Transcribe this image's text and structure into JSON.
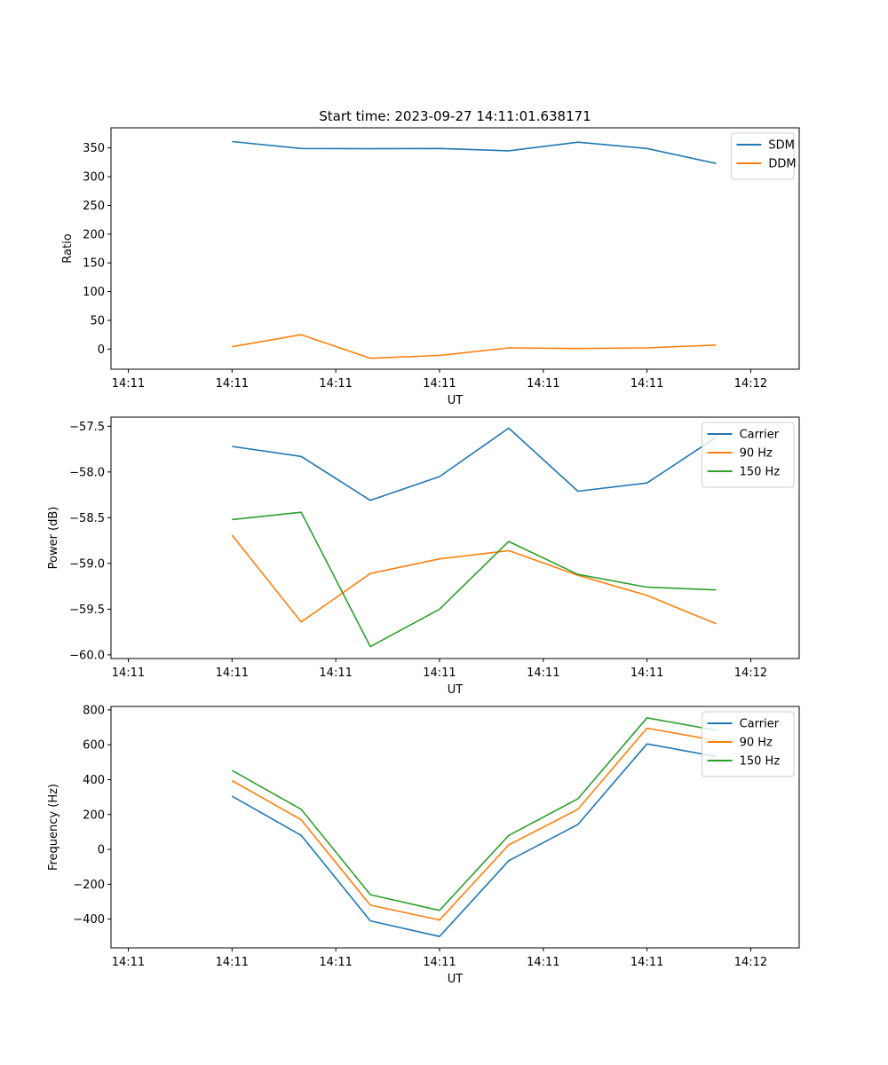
{
  "chart_data": [
    {
      "type": "line",
      "title": "Start time: 2023-09-27 14:11:01.638171",
      "xlabel": "UT",
      "ylabel": "Ratio",
      "x_tick_labels": [
        "14:11",
        "14:11",
        "14:11",
        "14:11",
        "14:11",
        "14:11",
        "14:12"
      ],
      "y_ticks": [
        0,
        50,
        100,
        150,
        200,
        250,
        300,
        350
      ],
      "y_tick_labels": [
        "0",
        "50",
        "100",
        "150",
        "200",
        "250",
        "300",
        "350"
      ],
      "ylim": [
        -35,
        385
      ],
      "x": [
        1,
        2,
        3,
        4,
        5,
        6,
        7,
        8
      ],
      "xlim": [
        -0.75,
        9.2
      ],
      "x_ticks": [
        -0.5,
        1.0,
        2.5,
        4.0,
        5.5,
        7.0,
        8.5
      ],
      "legend_position": "top-right",
      "series": [
        {
          "name": "SDM",
          "color": "#1f77b4",
          "values": [
            361,
            349,
            348.5,
            349,
            345,
            360,
            349,
            323
          ]
        },
        {
          "name": "DDM",
          "color": "#ff7f0e",
          "values": [
            4,
            25,
            -16,
            -11,
            2,
            1,
            2,
            7
          ]
        }
      ]
    },
    {
      "type": "line",
      "title": "",
      "xlabel": "UT",
      "ylabel": "Power (dB)",
      "x_tick_labels": [
        "14:11",
        "14:11",
        "14:11",
        "14:11",
        "14:11",
        "14:11",
        "14:12"
      ],
      "y_ticks": [
        -60.0,
        -59.5,
        -59.0,
        -58.5,
        -58.0,
        -57.5
      ],
      "y_tick_labels": [
        "−60.0",
        "−59.5",
        "−59.0",
        "−58.5",
        "−58.0",
        "−57.5"
      ],
      "ylim": [
        -60.04,
        -57.4
      ],
      "x": [
        1,
        2,
        3,
        4,
        5,
        6,
        7,
        8
      ],
      "xlim": [
        -0.75,
        9.2
      ],
      "x_ticks": [
        -0.5,
        1.0,
        2.5,
        4.0,
        5.5,
        7.0,
        8.5
      ],
      "legend_position": "top-right",
      "series": [
        {
          "name": "Carrier",
          "color": "#1f77b4",
          "values": [
            -57.72,
            -57.83,
            -58.31,
            -58.05,
            -57.52,
            -58.21,
            -58.12,
            -57.62
          ]
        },
        {
          "name": "90 Hz",
          "color": "#ff7f0e",
          "values": [
            -58.69,
            -59.64,
            -59.11,
            -58.95,
            -58.86,
            -59.13,
            -59.35,
            -59.66
          ]
        },
        {
          "name": "150 Hz",
          "color": "#2ca02c",
          "values": [
            -58.52,
            -58.44,
            -59.91,
            -59.5,
            -58.76,
            -59.12,
            -59.26,
            -59.29
          ]
        }
      ]
    },
    {
      "type": "line",
      "title": "",
      "xlabel": "UT",
      "ylabel": "Frequency (Hz)",
      "x_tick_labels": [
        "14:11",
        "14:11",
        "14:11",
        "14:11",
        "14:11",
        "14:11",
        "14:12"
      ],
      "y_ticks": [
        -400,
        -200,
        0,
        200,
        400,
        600,
        800
      ],
      "y_tick_labels": [
        "−400",
        "−200",
        "0",
        "200",
        "400",
        "600",
        "800"
      ],
      "ylim": [
        -565,
        820
      ],
      "x": [
        1,
        2,
        3,
        4,
        5,
        6,
        7,
        8
      ],
      "xlim": [
        -0.75,
        9.2
      ],
      "x_ticks": [
        -0.5,
        1.0,
        2.5,
        4.0,
        5.5,
        7.0,
        8.5
      ],
      "legend_position": "top-right",
      "series": [
        {
          "name": "Carrier",
          "color": "#1f77b4",
          "values": [
            305,
            80,
            -410,
            -500,
            -65,
            143,
            605,
            533
          ]
        },
        {
          "name": "90 Hz",
          "color": "#ff7f0e",
          "values": [
            395,
            170,
            -320,
            -405,
            25,
            230,
            695,
            625
          ]
        },
        {
          "name": "150 Hz",
          "color": "#2ca02c",
          "values": [
            453,
            230,
            -260,
            -350,
            80,
            290,
            755,
            683
          ]
        }
      ]
    }
  ]
}
